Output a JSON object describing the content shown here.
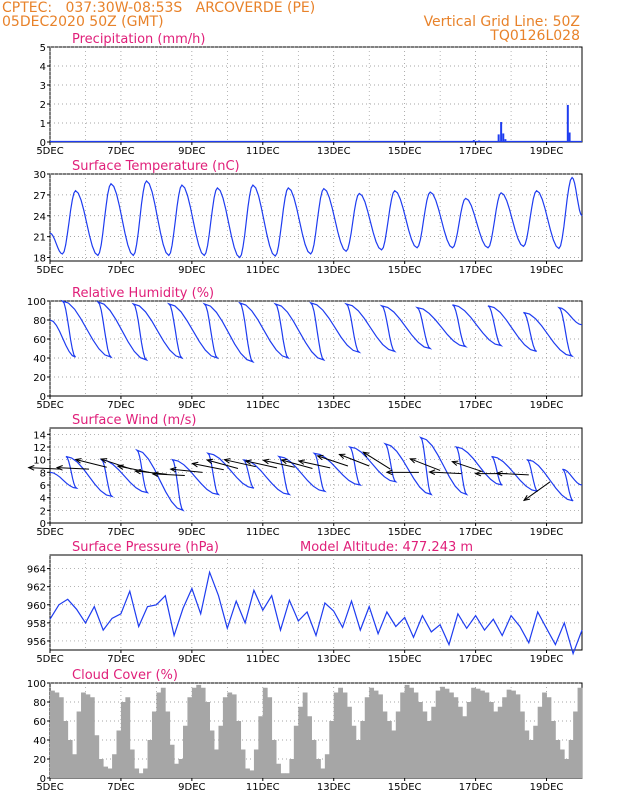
{
  "header": {
    "line1": "CPTEC:   037:30W-08:53S   ARCOVERDE (PE)",
    "line2": "05DEC2020 50Z (GMT)",
    "right1": "Vertical Grid Line: 50Z",
    "right2": "TQ0126L028"
  },
  "colors": {
    "header": "#e8822a",
    "title": "#e0207a",
    "series": "#1e3cf0",
    "cloud": "#a6a6a6",
    "grid": "#888888"
  },
  "chart_data": [
    {
      "id": "precip",
      "type": "bar",
      "title": "Precipitation (mm/h)",
      "x_tick_labels": [
        "5DEC",
        "7DEC",
        "9DEC",
        "11DEC",
        "13DEC",
        "15DEC",
        "17DEC",
        "19DEC"
      ],
      "x_tick_days": [
        0,
        2,
        4,
        6,
        8,
        10,
        12,
        14
      ],
      "x_range_days": [
        0,
        15
      ],
      "ylim": [
        0,
        5
      ],
      "yticks": [
        0,
        1,
        2,
        3,
        4,
        5
      ],
      "grid": true,
      "bars": [
        {
          "day": 11.8,
          "value": 0.05
        },
        {
          "day": 11.95,
          "value": 0.1
        },
        {
          "day": 12.1,
          "value": 0.08
        },
        {
          "day": 12.65,
          "value": 0.4
        },
        {
          "day": 12.72,
          "value": 1.05
        },
        {
          "day": 12.78,
          "value": 0.45
        },
        {
          "day": 12.84,
          "value": 0.15
        },
        {
          "day": 14.6,
          "value": 1.95
        },
        {
          "day": 14.65,
          "value": 0.5
        }
      ]
    },
    {
      "id": "temp",
      "type": "line",
      "title": "Surface Temperature (nC)",
      "x_tick_labels": [
        "5DEC",
        "7DEC",
        "9DEC",
        "11DEC",
        "13DEC",
        "15DEC",
        "17DEC",
        "19DEC"
      ],
      "x_tick_days": [
        0,
        2,
        4,
        6,
        8,
        10,
        12,
        14
      ],
      "x_range_days": [
        0,
        15
      ],
      "ylim": [
        17.5,
        30
      ],
      "yticks": [
        18,
        21,
        24,
        27,
        30
      ],
      "grid": true,
      "daily_max": [
        27.6,
        28.6,
        29.0,
        28.4,
        28.0,
        28.4,
        28.0,
        27.9,
        27.2,
        27.6,
        27.4,
        26.5,
        27.3,
        27.6,
        29.5
      ],
      "daily_min": [
        18.5,
        18.3,
        18.3,
        18.3,
        18.3,
        18.0,
        18.2,
        18.5,
        18.9,
        19.1,
        19.4,
        19.4,
        19.4,
        19.6,
        19.3
      ],
      "start_value": 21.5,
      "end_value": 24.0
    },
    {
      "id": "rh",
      "type": "line",
      "title": "Relative Humidity (%)",
      "x_tick_labels": [
        "5DEC",
        "7DEC",
        "9DEC",
        "11DEC",
        "13DEC",
        "15DEC",
        "17DEC",
        "19DEC"
      ],
      "x_tick_days": [
        0,
        2,
        4,
        6,
        8,
        10,
        12,
        14
      ],
      "x_range_days": [
        0,
        15
      ],
      "ylim": [
        0,
        100
      ],
      "yticks": [
        0,
        20,
        40,
        60,
        80,
        100
      ],
      "grid": true,
      "daily_max": [
        100,
        99,
        97,
        97,
        97,
        98,
        97,
        98,
        97,
        95,
        93,
        96,
        95,
        88,
        93
      ],
      "daily_min": [
        41,
        41,
        38,
        40,
        40,
        36,
        40,
        38,
        46,
        47,
        50,
        52,
        53,
        47,
        42
      ],
      "start_value": 80,
      "end_value": 75
    },
    {
      "id": "wind",
      "type": "line",
      "title": "Surface Wind (m/s)",
      "x_tick_labels": [
        "5DEC",
        "7DEC",
        "9DEC",
        "11DEC",
        "13DEC",
        "15DEC",
        "17DEC",
        "19DEC"
      ],
      "x_tick_days": [
        0,
        2,
        4,
        6,
        8,
        10,
        12,
        14
      ],
      "x_range_days": [
        0,
        15
      ],
      "ylim": [
        0,
        15
      ],
      "yticks": [
        0,
        2,
        4,
        6,
        8,
        10,
        12,
        14
      ],
      "grid": true,
      "daily_max": [
        10.5,
        10.0,
        11.5,
        10.0,
        11.0,
        10.0,
        10.5,
        11.0,
        12.0,
        12.5,
        13.5,
        12.0,
        10.5,
        10.0,
        8.5
      ],
      "daily_min": [
        5.5,
        4.2,
        4.8,
        2.0,
        4.5,
        5.5,
        4.5,
        5.0,
        6.0,
        6.5,
        4.5,
        4.5,
        6.0,
        5.0,
        3.5
      ],
      "start_value": 8.0,
      "end_value": 6.0,
      "vectors": [
        {
          "day": 0.3,
          "speed": 8.5,
          "u": -1,
          "v": 0.05
        },
        {
          "day": 1.1,
          "speed": 8.5,
          "u": -1,
          "v": 0.05
        },
        {
          "day": 1.6,
          "speed": 8.8,
          "u": -0.8,
          "v": 0.2
        },
        {
          "day": 2.3,
          "speed": 8.5,
          "u": -0.9,
          "v": 0.3
        },
        {
          "day": 2.8,
          "speed": 8.0,
          "u": -1,
          "v": 0.2
        },
        {
          "day": 3.3,
          "speed": 7.7,
          "u": -1,
          "v": 0.1
        },
        {
          "day": 3.8,
          "speed": 7.5,
          "u": -1,
          "v": 0.05
        },
        {
          "day": 4.3,
          "speed": 8.0,
          "u": -1,
          "v": 0.1
        },
        {
          "day": 4.9,
          "speed": 8.4,
          "u": -1,
          "v": 0.2
        },
        {
          "day": 5.3,
          "speed": 8.6,
          "u": -0.9,
          "v": 0.25
        },
        {
          "day": 5.8,
          "speed": 8.9,
          "u": -0.9,
          "v": 0.2
        },
        {
          "day": 6.4,
          "speed": 8.7,
          "u": -0.9,
          "v": 0.2
        },
        {
          "day": 6.9,
          "speed": 8.8,
          "u": -0.9,
          "v": 0.2
        },
        {
          "day": 7.4,
          "speed": 8.6,
          "u": -0.9,
          "v": 0.25
        },
        {
          "day": 7.9,
          "speed": 8.7,
          "u": -0.9,
          "v": 0.2
        },
        {
          "day": 8.4,
          "speed": 9.0,
          "u": -0.9,
          "v": 0.3
        },
        {
          "day": 9.0,
          "speed": 9.0,
          "u": -0.9,
          "v": 0.35
        },
        {
          "day": 9.6,
          "speed": 8.5,
          "u": -0.8,
          "v": 0.5
        },
        {
          "day": 10.4,
          "speed": 8.0,
          "u": -1,
          "v": 0
        },
        {
          "day": 11.0,
          "speed": 8.3,
          "u": -0.9,
          "v": 0.35
        },
        {
          "day": 11.6,
          "speed": 7.8,
          "u": -1,
          "v": 0.05
        },
        {
          "day": 12.2,
          "speed": 8.1,
          "u": -0.9,
          "v": 0.3
        },
        {
          "day": 12.9,
          "speed": 7.8,
          "u": -1,
          "v": 0
        },
        {
          "day": 13.5,
          "speed": 7.6,
          "u": -1,
          "v": 0.05
        },
        {
          "day": 14.1,
          "speed": 6.5,
          "u": -0.7,
          "v": -0.5
        }
      ]
    },
    {
      "id": "pres",
      "type": "line",
      "title": "Surface Pressure (hPa)",
      "subtitle": "Model Altitude: 477.243 m",
      "x_tick_labels": [
        "5DEC",
        "7DEC",
        "9DEC",
        "11DEC",
        "13DEC",
        "15DEC",
        "17DEC",
        "19DEC"
      ],
      "x_tick_days": [
        0,
        2,
        4,
        6,
        8,
        10,
        12,
        14
      ],
      "x_range_days": [
        0,
        15
      ],
      "ylim": [
        955,
        965.5
      ],
      "yticks": [
        956,
        958,
        960,
        962,
        964
      ],
      "grid": true,
      "points": [
        [
          0,
          958.4
        ],
        [
          0.25,
          960.0
        ],
        [
          0.5,
          960.6
        ],
        [
          0.75,
          959.5
        ],
        [
          1.0,
          958.0
        ],
        [
          1.25,
          959.8
        ],
        [
          1.5,
          957.2
        ],
        [
          1.75,
          958.5
        ],
        [
          2.0,
          959.0
        ],
        [
          2.25,
          961.5
        ],
        [
          2.5,
          957.6
        ],
        [
          2.75,
          959.8
        ],
        [
          3.0,
          960.0
        ],
        [
          3.25,
          961.0
        ],
        [
          3.5,
          956.6
        ],
        [
          3.75,
          959.6
        ],
        [
          4.0,
          961.8
        ],
        [
          4.25,
          959.0
        ],
        [
          4.5,
          963.6
        ],
        [
          4.75,
          961.0
        ],
        [
          5.0,
          957.4
        ],
        [
          5.25,
          960.4
        ],
        [
          5.5,
          958.0
        ],
        [
          5.75,
          961.6
        ],
        [
          6.0,
          959.4
        ],
        [
          6.25,
          961.0
        ],
        [
          6.5,
          957.2
        ],
        [
          6.75,
          960.5
        ],
        [
          7.0,
          958.2
        ],
        [
          7.25,
          959.2
        ],
        [
          7.5,
          956.6
        ],
        [
          7.75,
          960.2
        ],
        [
          8.0,
          959.3
        ],
        [
          8.25,
          957.5
        ],
        [
          8.5,
          960.4
        ],
        [
          8.75,
          957.2
        ],
        [
          9.0,
          959.8
        ],
        [
          9.25,
          956.8
        ],
        [
          9.5,
          959.2
        ],
        [
          9.75,
          957.6
        ],
        [
          10.0,
          958.6
        ],
        [
          10.25,
          956.4
        ],
        [
          10.5,
          958.8
        ],
        [
          10.75,
          957.0
        ],
        [
          11.0,
          957.8
        ],
        [
          11.25,
          955.6
        ],
        [
          11.5,
          959.0
        ],
        [
          11.75,
          957.4
        ],
        [
          12.0,
          958.8
        ],
        [
          12.25,
          957.2
        ],
        [
          12.5,
          958.4
        ],
        [
          12.75,
          956.6
        ],
        [
          13.0,
          958.8
        ],
        [
          13.25,
          957.6
        ],
        [
          13.5,
          955.8
        ],
        [
          13.75,
          959.2
        ],
        [
          14.0,
          957.4
        ],
        [
          14.25,
          955.6
        ],
        [
          14.5,
          958.0
        ],
        [
          14.75,
          954.6
        ],
        [
          15.0,
          957.2
        ]
      ]
    },
    {
      "id": "cloud",
      "type": "bar",
      "title": "Cloud Cover (%)",
      "x_tick_labels": [
        "5DEC",
        "7DEC",
        "9DEC",
        "11DEC",
        "13DEC",
        "15DEC",
        "17DEC",
        "19DEC"
      ],
      "x_tick_days": [
        0,
        2,
        4,
        6,
        8,
        10,
        12,
        14
      ],
      "x_range_days": [
        0,
        15
      ],
      "ylim": [
        0,
        100
      ],
      "yticks": [
        0,
        20,
        40,
        60,
        80,
        100
      ],
      "grid": true,
      "step_days": 0.125,
      "values": [
        92,
        90,
        85,
        60,
        40,
        25,
        70,
        90,
        88,
        85,
        45,
        20,
        12,
        10,
        25,
        50,
        80,
        85,
        30,
        10,
        5,
        10,
        40,
        70,
        90,
        95,
        70,
        35,
        15,
        20,
        55,
        85,
        95,
        98,
        95,
        80,
        50,
        30,
        55,
        85,
        90,
        88,
        60,
        30,
        10,
        8,
        30,
        65,
        95,
        85,
        40,
        15,
        5,
        5,
        20,
        55,
        75,
        90,
        65,
        40,
        20,
        10,
        25,
        60,
        90,
        95,
        90,
        75,
        55,
        40,
        60,
        85,
        95,
        92,
        88,
        70,
        60,
        50,
        70,
        90,
        98,
        95,
        90,
        80,
        70,
        60,
        75,
        92,
        96,
        94,
        90,
        85,
        75,
        65,
        80,
        95,
        94,
        92,
        90,
        80,
        70,
        75,
        85,
        93,
        92,
        88,
        70,
        50,
        40,
        55,
        75,
        90,
        85,
        60,
        40,
        30,
        20,
        40,
        70,
        95
      ]
    }
  ]
}
